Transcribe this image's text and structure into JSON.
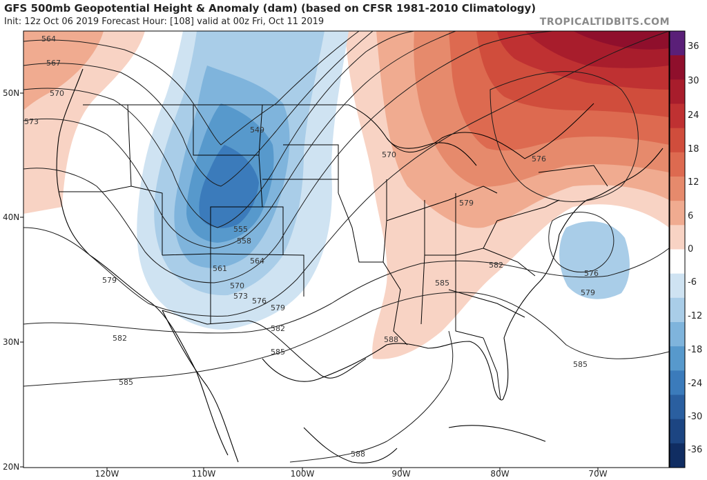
{
  "header": {
    "title": "GFS 500mb Geopotential Height & Anomaly (dam) (based on CFSR 1981-2010 Climatology)",
    "subtitle": "Init: 12z Oct 06 2019   Forecast Hour: [108]   valid at 00z Fri, Oct 11 2019",
    "brand": "TROPICALTIDBITS.COM"
  },
  "axes": {
    "lat_labels": [
      "50N",
      "40N",
      "30N",
      "20N"
    ],
    "lon_labels": [
      "120W",
      "110W",
      "100W",
      "90W",
      "80W",
      "70W"
    ]
  },
  "colorbar": {
    "labels": [
      "36",
      "30",
      "24",
      "18",
      "12",
      "6",
      "0",
      "-6",
      "-12",
      "-18",
      "-24",
      "-30",
      "-36"
    ],
    "colors": [
      "#8f0f2c",
      "#a81d2c",
      "#bf3132",
      "#d04d3c",
      "#dd6a50",
      "#e68a6c",
      "#f0ab90",
      "#f8d3c4",
      "#ffffff",
      "#cfe3f2",
      "#a9cde8",
      "#7fb4dc",
      "#5799cc",
      "#3b7bbb",
      "#2a5fa0",
      "#1c4582",
      "#102d62",
      "#5a1f78"
    ]
  },
  "contour_labels": {
    "west": [
      "564",
      "567",
      "570",
      "573",
      "579",
      "582",
      "585"
    ],
    "trough": [
      "549",
      "555",
      "558",
      "561",
      "564",
      "570",
      "573",
      "576",
      "579",
      "582",
      "585"
    ],
    "east": [
      "570",
      "576",
      "579",
      "582",
      "585",
      "588",
      "588",
      "576",
      "579",
      "585"
    ]
  }
}
